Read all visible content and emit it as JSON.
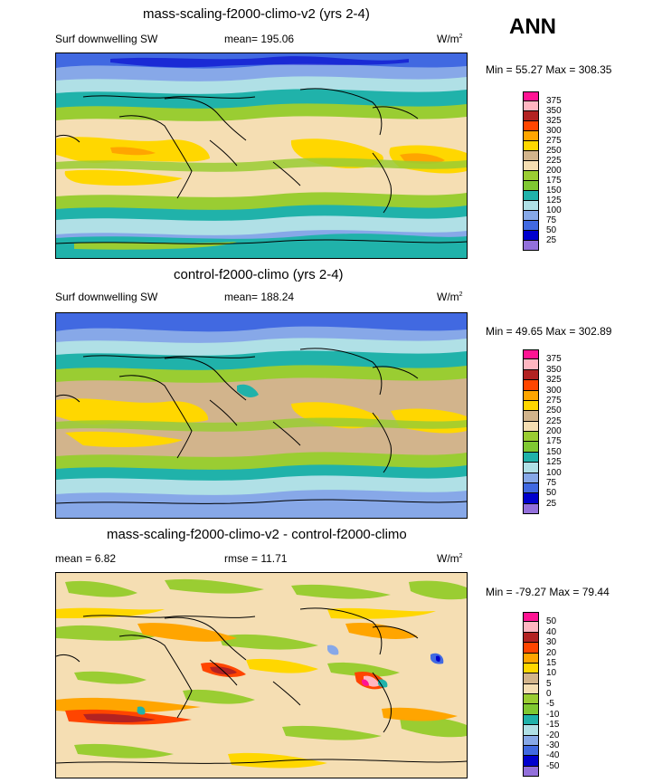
{
  "season": "ANN",
  "panels": [
    {
      "title": "mass-scaling-f2000-climo-v2 (yrs 2-4)",
      "left_label": "Surf downwelling SW",
      "center_label": "mean= 195.06",
      "units": "W/m",
      "units_sup": "2",
      "minmax": "Min =  55.27 Max = 308.35",
      "legend_labels": [
        "375",
        "350",
        "325",
        "300",
        "275",
        "250",
        "225",
        "200",
        "175",
        "150",
        "125",
        "100",
        "75",
        "50",
        "25"
      ],
      "legend_colors": [
        "#ff1493",
        "#ffb6c1",
        "#b22222",
        "#ff4500",
        "#ffa500",
        "#ffd700",
        "#d2b48c",
        "#f5deb3",
        "#9acd32",
        "#7fc832",
        "#20b2aa",
        "#b0e0e6",
        "#87a8e8",
        "#4169e1",
        "#0000cd",
        "#9370db"
      ]
    },
    {
      "title": "control-f2000-climo (yrs 2-4)",
      "left_label": "Surf downwelling SW",
      "center_label": "mean= 188.24",
      "units": "W/m",
      "units_sup": "2",
      "minmax": "Min =  49.65 Max = 302.89",
      "legend_labels": [
        "375",
        "350",
        "325",
        "300",
        "275",
        "250",
        "225",
        "200",
        "175",
        "150",
        "125",
        "100",
        "75",
        "50",
        "25"
      ],
      "legend_colors": [
        "#ff1493",
        "#ffb6c1",
        "#b22222",
        "#ff4500",
        "#ffa500",
        "#ffd700",
        "#d2b48c",
        "#f5deb3",
        "#9acd32",
        "#7fc832",
        "#20b2aa",
        "#b0e0e6",
        "#87a8e8",
        "#4169e1",
        "#0000cd",
        "#9370db"
      ]
    },
    {
      "title": "mass-scaling-f2000-climo-v2 - control-f2000-climo",
      "left_label": "mean =   6.82",
      "center_label": "rmse =  11.71",
      "units": "W/m",
      "units_sup": "2",
      "minmax": "Min = -79.27 Max =  79.44",
      "legend_labels": [
        "50",
        "40",
        "30",
        "20",
        "15",
        "10",
        "5",
        "0",
        "-5",
        "-10",
        "-15",
        "-20",
        "-30",
        "-40",
        "-50"
      ],
      "legend_colors": [
        "#ff1493",
        "#ffb6c1",
        "#b22222",
        "#ff4500",
        "#ffa500",
        "#ffd700",
        "#d2b48c",
        "#f5deb3",
        "#9acd32",
        "#7fc832",
        "#20b2aa",
        "#b0e0e6",
        "#87a8e8",
        "#4169e1",
        "#0000cd",
        "#9370db"
      ]
    }
  ]
}
